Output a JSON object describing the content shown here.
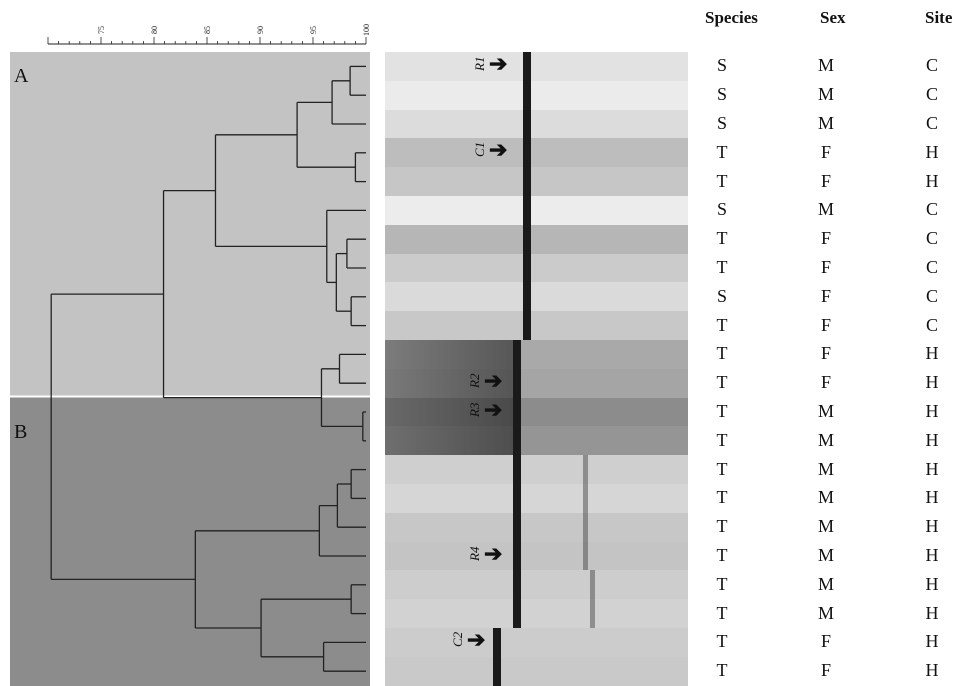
{
  "scale": {
    "ticks": [
      "75",
      "80",
      "85",
      "90",
      "95",
      "100"
    ],
    "min": 70,
    "max": 100
  },
  "clusters": [
    {
      "label": "A",
      "color": "#c3c3c3"
    },
    {
      "label": "B",
      "color": "#8c8c8c"
    }
  ],
  "table": {
    "headers": [
      "Species",
      "Sex",
      "Site"
    ],
    "rows": [
      [
        "S",
        "M",
        "C"
      ],
      [
        "S",
        "M",
        "C"
      ],
      [
        "S",
        "M",
        "C"
      ],
      [
        "T",
        "F",
        "H"
      ],
      [
        "T",
        "F",
        "H"
      ],
      [
        "S",
        "M",
        "C"
      ],
      [
        "T",
        "F",
        "C"
      ],
      [
        "T",
        "F",
        "C"
      ],
      [
        "S",
        "F",
        "C"
      ],
      [
        "T",
        "F",
        "C"
      ],
      [
        "T",
        "F",
        "H"
      ],
      [
        "T",
        "F",
        "H"
      ],
      [
        "T",
        "M",
        "H"
      ],
      [
        "T",
        "M",
        "H"
      ],
      [
        "T",
        "M",
        "H"
      ],
      [
        "T",
        "M",
        "H"
      ],
      [
        "T",
        "M",
        "H"
      ],
      [
        "T",
        "M",
        "H"
      ],
      [
        "T",
        "M",
        "H"
      ],
      [
        "T",
        "M",
        "H"
      ],
      [
        "T",
        "F",
        "H"
      ],
      [
        "T",
        "F",
        "H"
      ]
    ]
  },
  "gel_markers": [
    {
      "label": "R1",
      "lane": 0
    },
    {
      "label": "C1",
      "lane": 3
    },
    {
      "label": "R2",
      "lane": 11
    },
    {
      "label": "R3",
      "lane": 12
    },
    {
      "label": "R4",
      "lane": 17
    },
    {
      "label": "C2",
      "lane": 20
    }
  ],
  "colors": {
    "lineColor": "#222222",
    "gelBand": "#1a1a1a"
  }
}
